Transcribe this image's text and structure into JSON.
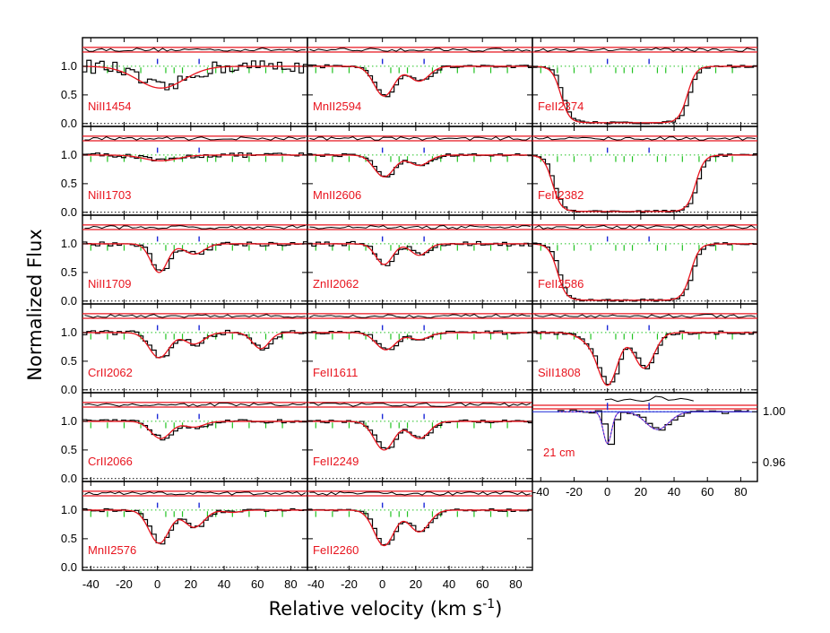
{
  "chart_data": {
    "type": "line",
    "title": "",
    "xlabel": "Relative velocity (km s",
    "xlabel_sup": "-1",
    "xlabel_close": ")",
    "ylabel": "Normalized Flux",
    "xlim": [
      -45,
      90
    ],
    "ylim": [
      -0.05,
      1.5
    ],
    "xticks": [
      -40,
      -20,
      0,
      20,
      40,
      60,
      80
    ],
    "yticks": [
      0.0,
      0.5,
      1.0
    ],
    "ytick_labels": [
      "0.0",
      "0.5",
      "1.0"
    ],
    "component_marks_blue": [
      0,
      25
    ],
    "component_marks_green": [
      -40,
      -30,
      -20,
      -10,
      5,
      10,
      15,
      30,
      35,
      45,
      55,
      65,
      75
    ],
    "colors": {
      "data": "#000000",
      "model": "#e8141e",
      "blue": "#1b28d8",
      "green": "#22c222",
      "reference": "#000000"
    },
    "panels": [
      {
        "label": "NiII1454",
        "col": 0,
        "row": 0,
        "continuum": 1.0,
        "components": [
          {
            "v": 2,
            "depth": 0.38,
            "sigma": 14
          }
        ],
        "noise": 0.12
      },
      {
        "label": "NiII1703",
        "col": 0,
        "row": 1,
        "continuum": 1.0,
        "components": [
          {
            "v": 2,
            "depth": 0.1,
            "sigma": 10
          }
        ],
        "noise": 0.04
      },
      {
        "label": "NiII1709",
        "col": 0,
        "row": 2,
        "continuum": 1.0,
        "components": [
          {
            "v": 1,
            "depth": 0.5,
            "sigma": 5
          },
          {
            "v": 22,
            "depth": 0.18,
            "sigma": 6
          }
        ],
        "noise": 0.04
      },
      {
        "label": "CrII2062",
        "col": 0,
        "row": 3,
        "continuum": 1.0,
        "components": [
          {
            "v": 1,
            "depth": 0.44,
            "sigma": 6
          },
          {
            "v": 22,
            "depth": 0.2,
            "sigma": 6
          },
          {
            "v": 62,
            "depth": 0.28,
            "sigma": 5
          }
        ],
        "noise": 0.04
      },
      {
        "label": "CrII2066",
        "col": 0,
        "row": 4,
        "continuum": 1.0,
        "components": [
          {
            "v": 2,
            "depth": 0.3,
            "sigma": 6
          },
          {
            "v": 22,
            "depth": 0.1,
            "sigma": 6
          }
        ],
        "noise": 0.03
      },
      {
        "label": "MnII2576",
        "col": 0,
        "row": 5,
        "continuum": 1.0,
        "components": [
          {
            "v": 1,
            "depth": 0.58,
            "sigma": 6
          },
          {
            "v": 22,
            "depth": 0.3,
            "sigma": 6
          },
          {
            "v": 45,
            "depth": 0.04,
            "sigma": 5
          }
        ],
        "noise": 0.025
      },
      {
        "label": "MnII2594",
        "col": 1,
        "row": 0,
        "continuum": 1.0,
        "components": [
          {
            "v": 1,
            "depth": 0.52,
            "sigma": 6
          },
          {
            "v": 22,
            "depth": 0.26,
            "sigma": 6
          }
        ],
        "noise": 0.025
      },
      {
        "label": "MnII2606",
        "col": 1,
        "row": 1,
        "continuum": 1.0,
        "components": [
          {
            "v": 1,
            "depth": 0.38,
            "sigma": 6
          },
          {
            "v": 22,
            "depth": 0.18,
            "sigma": 6
          }
        ],
        "noise": 0.025
      },
      {
        "label": "ZnII2062",
        "col": 1,
        "row": 2,
        "continuum": 1.0,
        "components": [
          {
            "v": 1,
            "depth": 0.36,
            "sigma": 5
          },
          {
            "v": 22,
            "depth": 0.2,
            "sigma": 5
          }
        ],
        "noise": 0.04
      },
      {
        "label": "FeII1611",
        "col": 1,
        "row": 3,
        "continuum": 1.0,
        "components": [
          {
            "v": 2,
            "depth": 0.3,
            "sigma": 6
          },
          {
            "v": 22,
            "depth": 0.12,
            "sigma": 6
          }
        ],
        "noise": 0.03
      },
      {
        "label": "FeII2249",
        "col": 1,
        "row": 4,
        "continuum": 1.0,
        "components": [
          {
            "v": 1,
            "depth": 0.5,
            "sigma": 6
          },
          {
            "v": 22,
            "depth": 0.3,
            "sigma": 6
          }
        ],
        "noise": 0.025
      },
      {
        "label": "FeII2260",
        "col": 1,
        "row": 5,
        "continuum": 1.0,
        "components": [
          {
            "v": 1,
            "depth": 0.62,
            "sigma": 6
          },
          {
            "v": 22,
            "depth": 0.38,
            "sigma": 6
          }
        ],
        "noise": 0.025
      },
      {
        "label": "FeII2374",
        "col": 2,
        "row": 0,
        "saturated": [
          -28,
          48
        ],
        "continuum": 1.0,
        "noise": 0.02
      },
      {
        "label": "FeII2382",
        "col": 2,
        "row": 1,
        "saturated": [
          -33,
          53
        ],
        "continuum": 1.0,
        "noise": 0.02
      },
      {
        "label": "FeII2586",
        "col": 2,
        "row": 2,
        "saturated": [
          -30,
          50
        ],
        "continuum": 1.0,
        "noise": 0.02
      },
      {
        "label": "SiII1808",
        "col": 2,
        "row": 3,
        "continuum": 1.0,
        "components": [
          {
            "v": 0,
            "depth": 0.92,
            "sigma": 6
          },
          {
            "v": 22,
            "depth": 0.62,
            "sigma": 6
          },
          {
            "v": -12,
            "depth": 0.12,
            "sigma": 6
          }
        ],
        "noise": 0.03
      }
    ],
    "radio_panel": {
      "label": "21 cm",
      "ylim": [
        0.945,
        1.015
      ],
      "yticks": [
        0.96,
        1.0
      ],
      "ytick_labels": [
        "0.96",
        "1.00"
      ],
      "continuum": 1.0,
      "components": [
        {
          "v": 0,
          "depth": 0.025,
          "sigma": 2.5
        },
        {
          "v": 30,
          "depth": 0.014,
          "sigma": 7
        }
      ]
    }
  }
}
